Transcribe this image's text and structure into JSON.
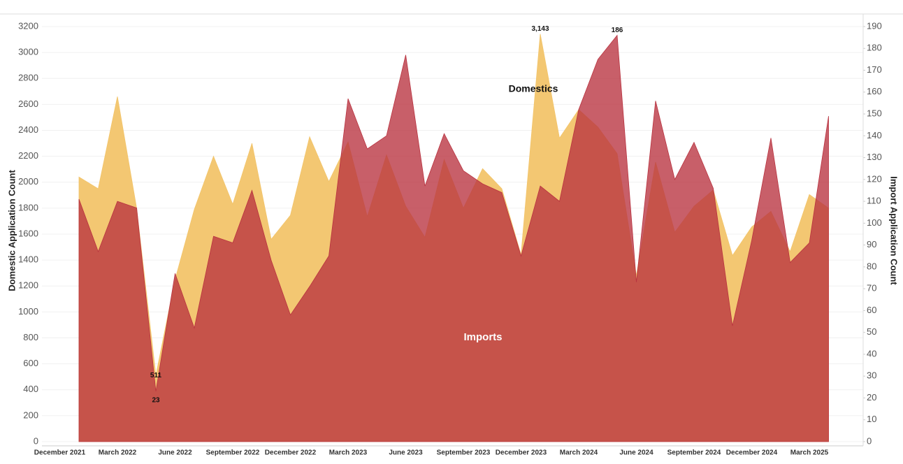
{
  "chart_data": {
    "type": "area",
    "categories": [
      "December 2021",
      null,
      null,
      "March 2022",
      null,
      null,
      "June 2022",
      null,
      null,
      "September 2022",
      null,
      null,
      "December 2022",
      null,
      null,
      "March 2023",
      null,
      null,
      "June 2023",
      null,
      null,
      "September 2023",
      null,
      null,
      "December 2023",
      null,
      null,
      "March 2024",
      null,
      null,
      "June 2024",
      null,
      null,
      "September 2024",
      null,
      null,
      "December 2024",
      null,
      null,
      "March 2025",
      null
    ],
    "series": [
      {
        "name": "Domestics",
        "color": "#f2c46a",
        "axis": "y",
        "values": [
          null,
          2040,
          1950,
          2660,
          1800,
          511,
          1250,
          1790,
          2200,
          1830,
          2300,
          1560,
          1745,
          2350,
          2005,
          2310,
          1735,
          2210,
          1815,
          1575,
          2175,
          1800,
          2105,
          1950,
          1440,
          3143,
          2340,
          2560,
          2425,
          2220,
          1280,
          2155,
          1615,
          1815,
          1940,
          1435,
          1655,
          1775,
          1465,
          1905,
          1800
        ],
        "value_labels": [
          null,
          null,
          null,
          null,
          null,
          "511",
          null,
          null,
          null,
          null,
          null,
          null,
          null,
          null,
          null,
          null,
          null,
          null,
          null,
          null,
          null,
          null,
          null,
          null,
          null,
          "3,143",
          null,
          null,
          null,
          null,
          null,
          null,
          null,
          null,
          null,
          null,
          null,
          null,
          null,
          null,
          null
        ]
      },
      {
        "name": "Imports",
        "color": "#b8323f",
        "axis": "y2",
        "values": [
          null,
          111,
          87,
          110,
          107,
          23,
          77,
          52,
          94,
          91,
          115,
          83,
          58,
          71,
          85,
          157,
          134,
          140,
          177,
          117,
          141,
          124,
          118,
          114,
          85,
          117,
          110,
          152,
          175,
          186,
          73,
          156,
          120,
          137,
          116,
          53,
          92,
          139,
          82,
          91,
          149
        ],
        "value_labels": [
          null,
          null,
          null,
          null,
          null,
          "23",
          null,
          null,
          null,
          null,
          null,
          null,
          null,
          null,
          null,
          null,
          null,
          null,
          null,
          null,
          null,
          null,
          null,
          null,
          null,
          null,
          null,
          null,
          null,
          "186",
          null,
          null,
          null,
          null,
          null,
          null,
          null,
          null,
          null,
          null,
          null
        ]
      }
    ],
    "ylabel": "Domestic Application Count",
    "y2label": "Import Application Count",
    "ylim": [
      0,
      3200
    ],
    "yticks": [
      0,
      200,
      400,
      600,
      800,
      1000,
      1200,
      1400,
      1600,
      1800,
      2000,
      2200,
      2400,
      2600,
      2800,
      3000,
      3200
    ],
    "y2lim": [
      0,
      190
    ],
    "y2ticks": [
      0,
      10,
      20,
      30,
      40,
      50,
      60,
      70,
      80,
      90,
      100,
      110,
      120,
      130,
      140,
      150,
      160,
      170,
      180,
      190
    ],
    "grid": true
  }
}
